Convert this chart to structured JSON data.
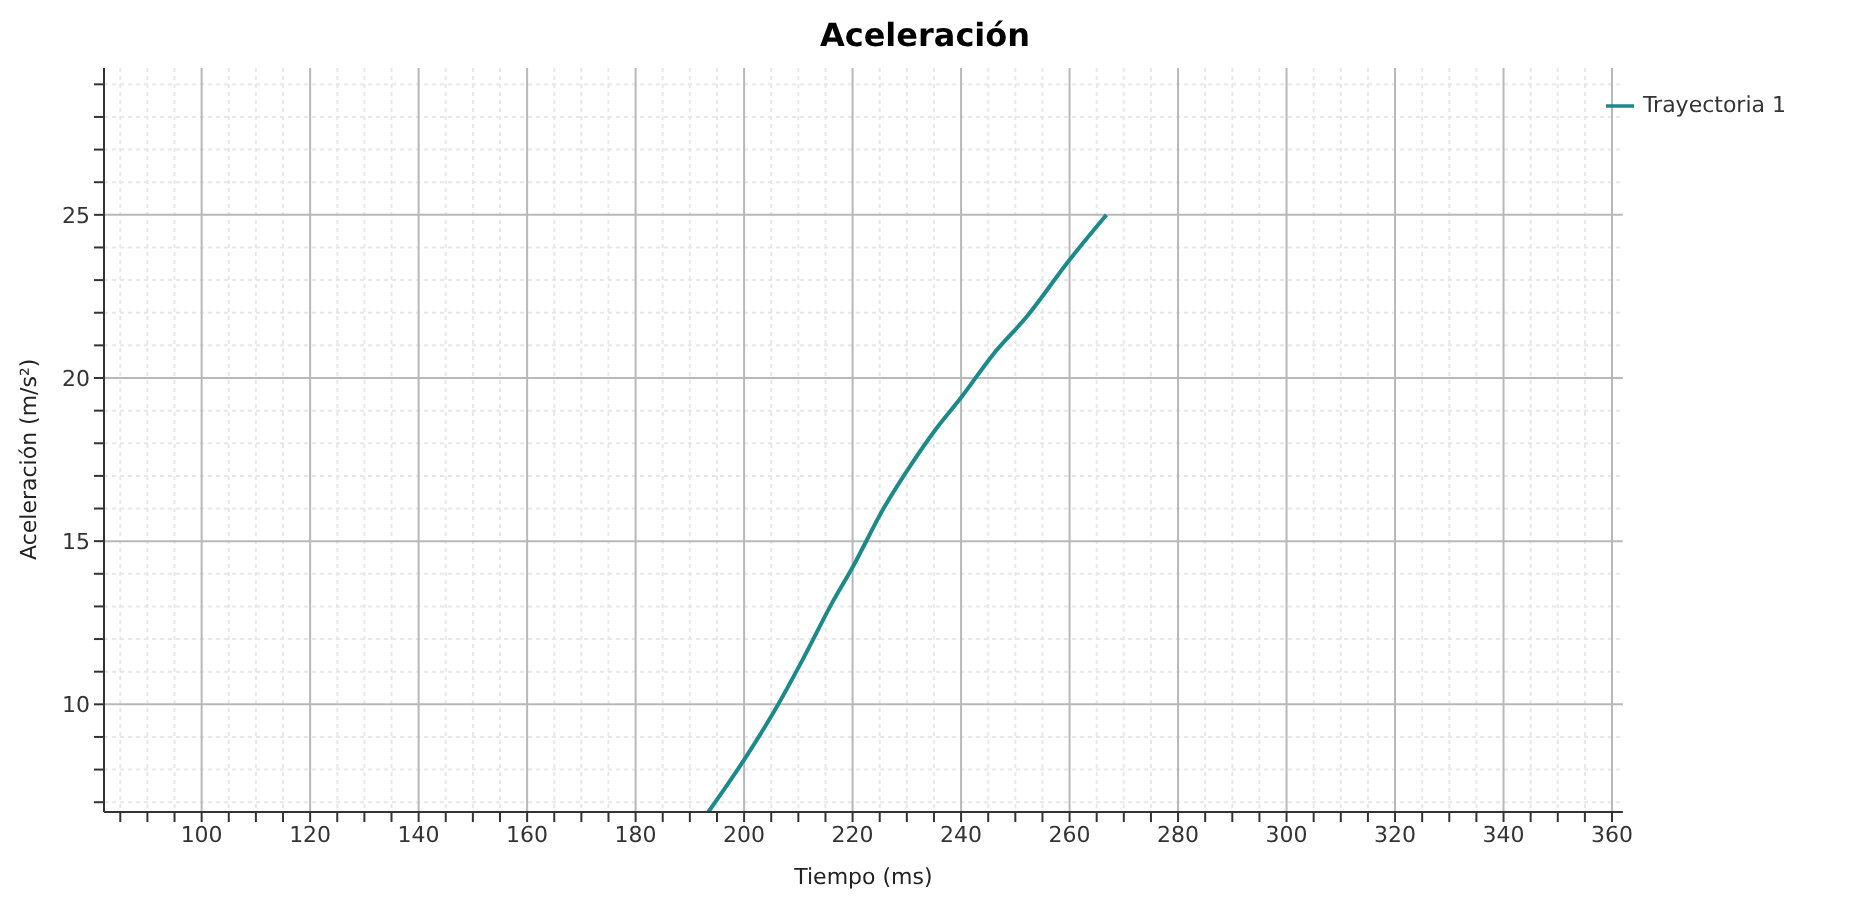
{
  "chart_data": {
    "type": "line",
    "title": "Aceleración",
    "xlabel": "Tiempo (ms)",
    "ylabel": "Aceleración (m/s²)",
    "x": [
      193.4,
      200,
      205.6,
      210.9,
      216.2,
      220,
      225.7,
      231,
      235.2,
      240,
      245.8,
      252.2,
      259.9,
      266.8
    ],
    "series": [
      {
        "name": "Trayectoria 1",
        "color": "#1a8a8a",
        "values": [
          6.7,
          8.3,
          9.8,
          11.4,
          13.1,
          14.2,
          16.0,
          17.4,
          18.4,
          19.4,
          20.7,
          21.9,
          23.6,
          25.0
        ]
      }
    ],
    "xlim": [
      82,
      362
    ],
    "ylim": [
      6.7,
      29.5
    ],
    "xticks": [
      {
        "value": 85,
        "label": null
      },
      {
        "value": 90,
        "label": null
      },
      {
        "value": 95,
        "label": null
      },
      100,
      {
        "value": 105,
        "label": null
      },
      {
        "value": 110,
        "label": null
      },
      {
        "value": 115,
        "label": null
      },
      120,
      {
        "value": 125,
        "label": null
      },
      {
        "value": 130,
        "label": null
      },
      {
        "value": 135,
        "label": null
      },
      140,
      {
        "value": 145,
        "label": null
      },
      {
        "value": 150,
        "label": null
      },
      {
        "value": 155,
        "label": null
      },
      160,
      {
        "value": 165,
        "label": null
      },
      {
        "value": 170,
        "label": null
      },
      {
        "value": 175,
        "label": null
      },
      180,
      {
        "value": 185,
        "label": null
      },
      {
        "value": 190,
        "label": null
      },
      {
        "value": 195,
        "label": null
      },
      200,
      {
        "value": 205,
        "label": null
      },
      {
        "value": 210,
        "label": null
      },
      {
        "value": 215,
        "label": null
      },
      220,
      {
        "value": 225,
        "label": null
      },
      {
        "value": 230,
        "label": null
      },
      {
        "value": 235,
        "label": null
      },
      240,
      {
        "value": 245,
        "label": null
      },
      {
        "value": 250,
        "label": null
      },
      {
        "value": 255,
        "label": null
      },
      260,
      {
        "value": 265,
        "label": null
      },
      {
        "value": 270,
        "label": null
      },
      {
        "value": 275,
        "label": null
      },
      280,
      {
        "value": 285,
        "label": null
      },
      {
        "value": 290,
        "label": null
      },
      {
        "value": 295,
        "label": null
      },
      300,
      {
        "value": 305,
        "label": null
      },
      {
        "value": 310,
        "label": null
      },
      {
        "value": 315,
        "label": null
      },
      320,
      {
        "value": 325,
        "label": null
      },
      {
        "value": 330,
        "label": null
      },
      {
        "value": 335,
        "label": null
      },
      340,
      {
        "value": 345,
        "label": null
      },
      {
        "value": 350,
        "label": null
      },
      {
        "value": 355,
        "label": null
      },
      360
    ],
    "yticks": [
      {
        "value": 7,
        "label": null
      },
      {
        "value": 8,
        "label": null
      },
      {
        "value": 9,
        "label": null
      },
      10,
      {
        "value": 11,
        "label": null
      },
      {
        "value": 12,
        "label": null
      },
      {
        "value": 13,
        "label": null
      },
      {
        "value": 14,
        "label": null
      },
      15,
      {
        "value": 16,
        "label": null
      },
      {
        "value": 17,
        "label": null
      },
      {
        "value": 18,
        "label": null
      },
      {
        "value": 19,
        "label": null
      },
      20,
      {
        "value": 21,
        "label": null
      },
      {
        "value": 22,
        "label": null
      },
      {
        "value": 23,
        "label": null
      },
      {
        "value": 24,
        "label": null
      },
      25,
      {
        "value": 26,
        "label": null
      },
      {
        "value": 27,
        "label": null
      },
      {
        "value": 28,
        "label": null
      },
      {
        "value": 29,
        "label": null
      }
    ],
    "grid": true,
    "legend": "top right",
    "marker": "none",
    "line_style": "solid"
  }
}
